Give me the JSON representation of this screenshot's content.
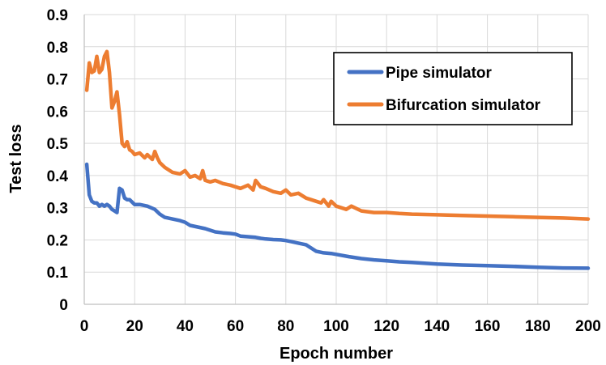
{
  "chart_data": {
    "type": "line",
    "title": "",
    "xlabel": "Epoch number",
    "ylabel": "Test loss",
    "xlim": [
      0,
      200
    ],
    "ylim": [
      0,
      0.9
    ],
    "xticks": [
      0,
      20,
      40,
      60,
      80,
      100,
      120,
      140,
      160,
      180,
      200
    ],
    "yticks": [
      0,
      0.1,
      0.2,
      0.3,
      0.4,
      0.5,
      0.6,
      0.7,
      0.8,
      0.9
    ],
    "xtick_labels": [
      "0",
      "20",
      "40",
      "60",
      "80",
      "100",
      "120",
      "140",
      "160",
      "180",
      "200"
    ],
    "ytick_labels": [
      "0",
      "0.1",
      "0.2",
      "0.3",
      "0.4",
      "0.5",
      "0.6",
      "0.7",
      "0.8",
      "0.9"
    ],
    "grid": true,
    "legend_position": "top-right",
    "series": [
      {
        "name": "Pipe simulator",
        "color": "#4472C4",
        "x": [
          1,
          2,
          3,
          4,
          5,
          6,
          7,
          8,
          9,
          10,
          11,
          12,
          13,
          14,
          15,
          16,
          17,
          18,
          20,
          22,
          25,
          28,
          30,
          32,
          35,
          38,
          40,
          42,
          45,
          48,
          50,
          52,
          55,
          58,
          60,
          62,
          65,
          68,
          70,
          72,
          75,
          78,
          80,
          82,
          85,
          88,
          90,
          92,
          95,
          98,
          100,
          105,
          110,
          115,
          120,
          125,
          130,
          140,
          150,
          160,
          170,
          180,
          190,
          200
        ],
        "y": [
          0.435,
          0.34,
          0.32,
          0.315,
          0.315,
          0.305,
          0.31,
          0.305,
          0.31,
          0.305,
          0.295,
          0.29,
          0.285,
          0.36,
          0.355,
          0.33,
          0.325,
          0.325,
          0.31,
          0.31,
          0.305,
          0.295,
          0.28,
          0.27,
          0.265,
          0.26,
          0.255,
          0.245,
          0.24,
          0.235,
          0.23,
          0.225,
          0.222,
          0.22,
          0.218,
          0.212,
          0.21,
          0.208,
          0.205,
          0.203,
          0.201,
          0.2,
          0.198,
          0.195,
          0.19,
          0.185,
          0.175,
          0.165,
          0.16,
          0.158,
          0.155,
          0.148,
          0.142,
          0.138,
          0.135,
          0.132,
          0.13,
          0.125,
          0.122,
          0.12,
          0.118,
          0.115,
          0.113,
          0.112
        ]
      },
      {
        "name": "Bifurcation simulator",
        "color": "#ED7D31",
        "x": [
          1,
          2,
          3,
          4,
          5,
          6,
          7,
          8,
          9,
          10,
          11,
          12,
          13,
          14,
          15,
          16,
          17,
          18,
          19,
          20,
          22,
          24,
          25,
          27,
          28,
          29,
          30,
          32,
          35,
          38,
          40,
          42,
          44,
          46,
          47,
          48,
          50,
          52,
          55,
          58,
          60,
          62,
          65,
          67,
          68,
          70,
          72,
          75,
          78,
          80,
          82,
          85,
          88,
          90,
          92,
          94,
          95,
          97,
          98,
          100,
          102,
          104,
          106,
          110,
          115,
          120,
          125,
          130,
          140,
          150,
          160,
          170,
          180,
          190,
          200
        ],
        "y": [
          0.665,
          0.75,
          0.72,
          0.725,
          0.77,
          0.72,
          0.73,
          0.77,
          0.785,
          0.72,
          0.61,
          0.63,
          0.66,
          0.59,
          0.5,
          0.49,
          0.505,
          0.48,
          0.475,
          0.465,
          0.47,
          0.455,
          0.465,
          0.45,
          0.475,
          0.455,
          0.44,
          0.425,
          0.41,
          0.405,
          0.415,
          0.395,
          0.4,
          0.39,
          0.415,
          0.385,
          0.38,
          0.385,
          0.375,
          0.37,
          0.365,
          0.36,
          0.37,
          0.355,
          0.385,
          0.365,
          0.36,
          0.35,
          0.345,
          0.355,
          0.34,
          0.345,
          0.33,
          0.325,
          0.32,
          0.315,
          0.325,
          0.305,
          0.32,
          0.305,
          0.3,
          0.295,
          0.305,
          0.29,
          0.285,
          0.285,
          0.282,
          0.28,
          0.278,
          0.276,
          0.274,
          0.272,
          0.27,
          0.268,
          0.265
        ]
      }
    ]
  }
}
